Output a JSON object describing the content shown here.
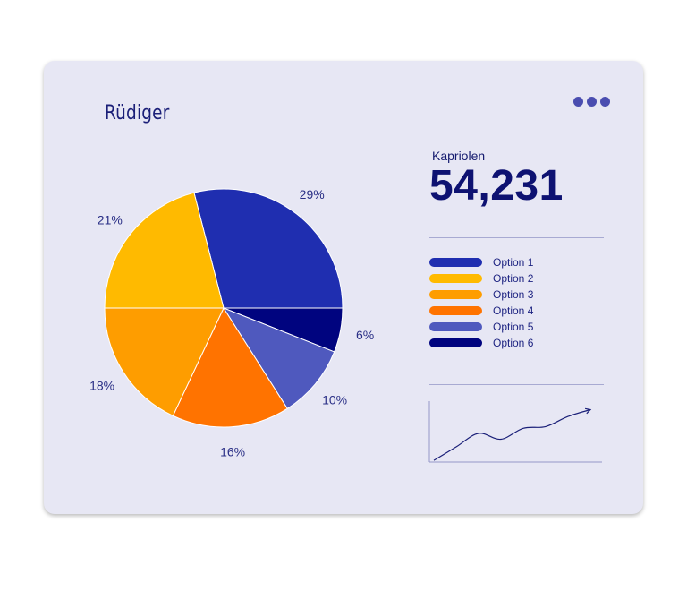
{
  "header": {
    "title": "Rüdiger",
    "menu_icon": "more-dots-icon"
  },
  "stat": {
    "label": "Kapriolen",
    "value": "54,231"
  },
  "colors": {
    "card_background": "#e7e7f4",
    "accent_dark": "#0e1272",
    "option_1": "#1f2eb0",
    "option_2": "#ffba00",
    "option_3": "#fe9d00",
    "option_4": "#ff7300",
    "option_5": "#4f59be",
    "option_6": "#00047f"
  },
  "chart_data": [
    {
      "type": "pie",
      "title": "Rüdiger",
      "slices": [
        {
          "label": "Option 1",
          "value": 29,
          "value_label": "29%",
          "color": "#1f2eb0"
        },
        {
          "label": "Option 6",
          "value": 6,
          "value_label": "6%",
          "color": "#00047f"
        },
        {
          "label": "Option 5",
          "value": 10,
          "value_label": "10%",
          "color": "#4f59be"
        },
        {
          "label": "Option 4",
          "value": 16,
          "value_label": "16%",
          "color": "#ff7300"
        },
        {
          "label": "Option 3",
          "value": 18,
          "value_label": "18%",
          "color": "#fe9d00"
        },
        {
          "label": "Option 2",
          "value": 21,
          "value_label": "21%",
          "color": "#ffba00"
        }
      ],
      "legend": {
        "placement": "right",
        "entries": [
          {
            "label": "Option 1",
            "color": "#1f2eb0"
          },
          {
            "label": "Option 2",
            "color": "#ffba00"
          },
          {
            "label": "Option 3",
            "color": "#fe9d00"
          },
          {
            "label": "Option 4",
            "color": "#ff7300"
          },
          {
            "label": "Option 5",
            "color": "#4f59be"
          },
          {
            "label": "Option 6",
            "color": "#00047f"
          }
        ]
      }
    },
    {
      "type": "line",
      "title": "",
      "x": [
        0,
        1,
        2,
        3,
        4,
        5,
        6,
        7
      ],
      "y": [
        2,
        18,
        34,
        27,
        40,
        42,
        54,
        62
      ],
      "axes": {
        "show_ticks": false,
        "arrow_end": true
      }
    }
  ]
}
